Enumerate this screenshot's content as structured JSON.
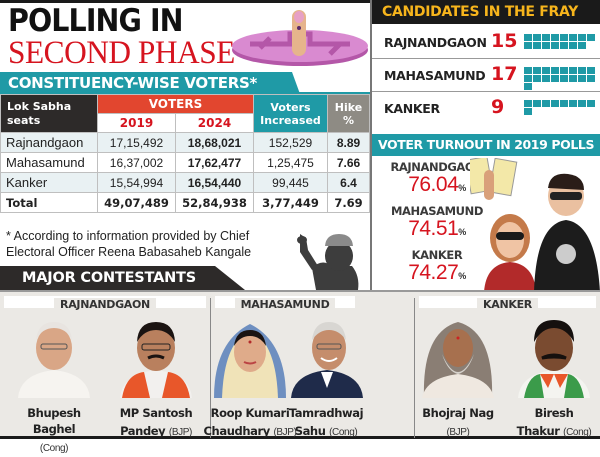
{
  "headline": {
    "line1": "POLLING IN",
    "line2": "SECOND PHASE"
  },
  "constituency_section": {
    "title": "CONSTITUENCY-WISE VOTERS*",
    "headers": {
      "seats": "Lok Sabha seats",
      "voters": "VOTERS",
      "year1": "2019",
      "year2": "2024",
      "increased": "Voters Increased",
      "hike": "Hike %"
    },
    "rows": [
      {
        "seat": "Rajnandgaon",
        "v2019": "17,15,492",
        "v2024": "18,68,021",
        "increased": "152,529",
        "hike": "8.89"
      },
      {
        "seat": "Mahasamund",
        "v2019": "16,37,002",
        "v2024": "17,62,477",
        "increased": "1,25,475",
        "hike": "7.66"
      },
      {
        "seat": "Kanker",
        "v2019": "15,54,994",
        "v2024": "16,54,440",
        "increased": "99,445",
        "hike": "6.4"
      },
      {
        "seat": "Total",
        "v2019": "49,07,489",
        "v2024": "52,84,938",
        "increased": "3,77,449",
        "hike": "7.69"
      }
    ],
    "footnote": "* According to information provided by Chief Electoral Officer Reena Babasaheb Kangale"
  },
  "candidates_fray": {
    "title": "CANDIDATES IN THE FRAY",
    "items": [
      {
        "name": "RAJNANDGAON",
        "count": "15",
        "n": 15
      },
      {
        "name": "MAHASAMUND",
        "count": "17",
        "n": 17
      },
      {
        "name": "KANKER",
        "count": "9",
        "n": 9
      }
    ],
    "block_color": "#1f9aa6"
  },
  "turnout": {
    "title": "VOTER TURNOUT IN 2019 POLLS",
    "items": [
      {
        "name": "RAJNANDGAON",
        "value": "76.04",
        "unit": "%"
      },
      {
        "name": "MAHASAMUND",
        "value": "74.51",
        "unit": "%"
      },
      {
        "name": "KANKER",
        "value": "74.27",
        "unit": "%"
      }
    ]
  },
  "contestants": {
    "title": "MAJOR CONTESTANTS",
    "groups": [
      {
        "name": "RAJNANDGAON",
        "people": [
          {
            "line1": "Bhupesh Baghel",
            "line2": "",
            "party": "(Cong)"
          },
          {
            "line1": "MP Santosh",
            "line2": "Pandey",
            "party": "(BJP)"
          }
        ]
      },
      {
        "name": "MAHASAMUND",
        "people": [
          {
            "line1": "Roop Kumari",
            "line2": "Chaudhary",
            "party": "(BJP)"
          },
          {
            "line1": "Tamradhwaj",
            "line2": "Sahu",
            "party": "(Cong)"
          }
        ]
      },
      {
        "name": "KANKER",
        "people": [
          {
            "line1": "Bhojraj Nag",
            "line2": "",
            "party": "(BJP)"
          },
          {
            "line1": "Biresh",
            "line2": "Thakur",
            "party": "(Cong)"
          }
        ]
      }
    ]
  },
  "colors": {
    "teal": "#1f9aa6",
    "red": "#d6141f",
    "orange_red": "#e2462f",
    "dark": "#2d2a29",
    "gold": "#f7b51c",
    "grey": "#8e8b84"
  }
}
